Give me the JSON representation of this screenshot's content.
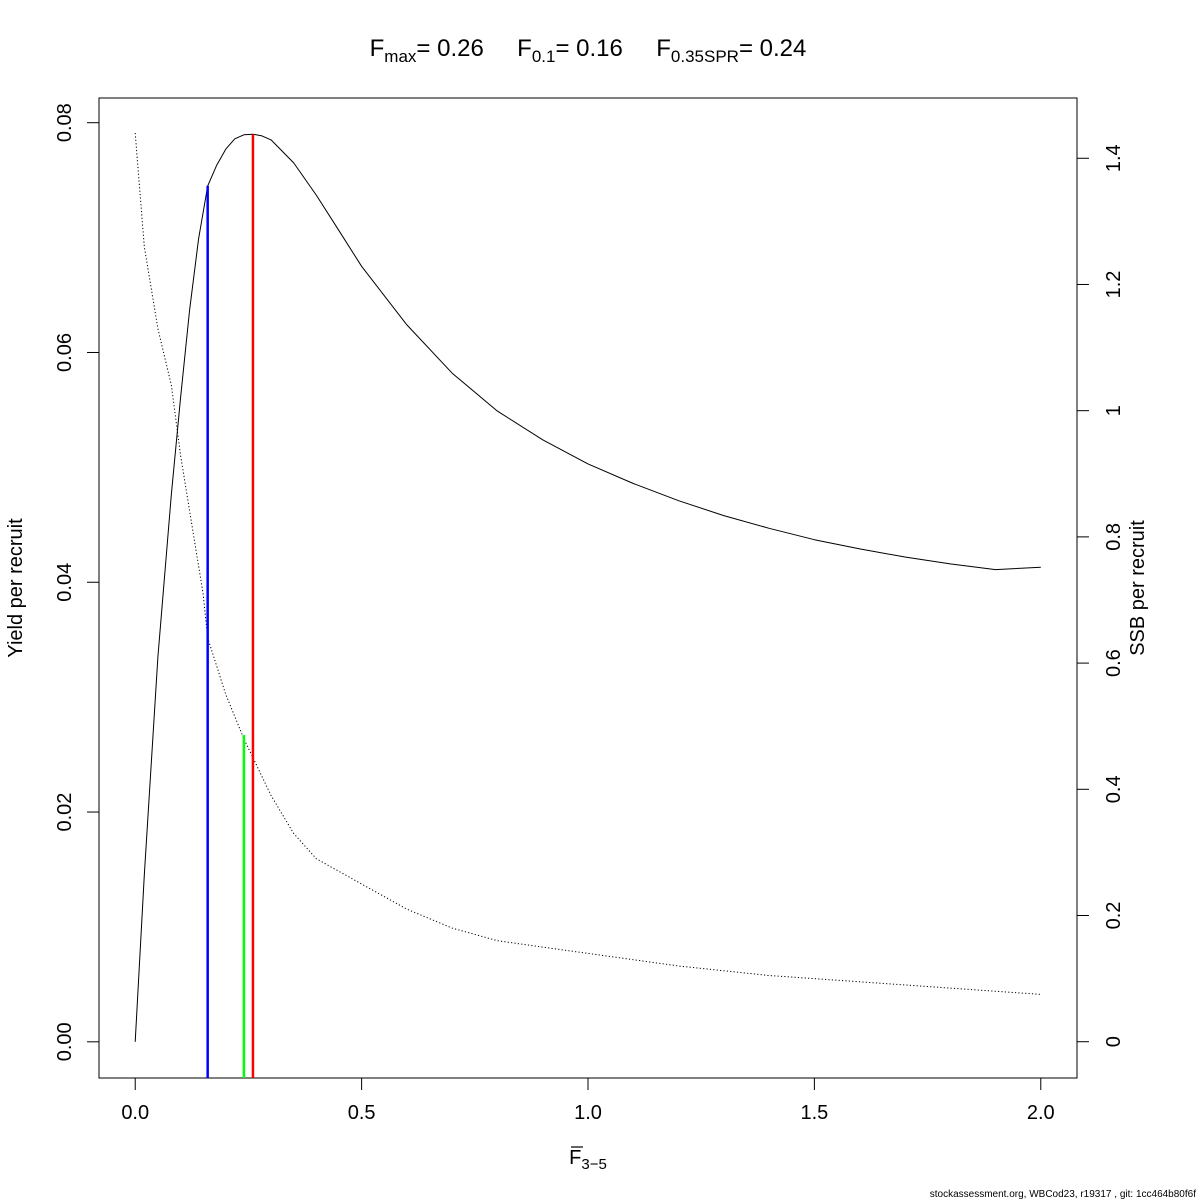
{
  "chart_data": {
    "type": "line",
    "title_parts": [
      {
        "main": "F",
        "sub": "max",
        "eq": "= 0.26"
      },
      {
        "main": "F",
        "sub": "0.1",
        "eq": "= 0.16"
      },
      {
        "main": "F",
        "sub": "0.35SPR",
        "eq": "= 0.24"
      }
    ],
    "xlabel": {
      "main": "F",
      "sub": "3−5",
      "bar": true
    },
    "ylabel_left": "Yield per recruit",
    "ylabel_right": "SSB per recruit",
    "xlim": [
      -0.08,
      2.08
    ],
    "ylim_left": [
      -0.00315,
      0.08215
    ],
    "ylim_right": [
      -0.0575,
      1.4955
    ],
    "x_ticks": [
      0,
      0.5,
      1,
      1.5,
      2
    ],
    "x_tick_labels": [
      "0.0",
      "0.5",
      "1.0",
      "1.5",
      "2.0"
    ],
    "y_left_ticks": [
      0,
      0.02,
      0.04,
      0.06,
      0.08
    ],
    "y_left_tick_labels": [
      "0.00",
      "0.02",
      "0.04",
      "0.06",
      "0.08"
    ],
    "y_right_ticks": [
      0,
      0.2,
      0.4,
      0.6,
      0.8,
      1,
      1.2,
      1.4
    ],
    "y_right_tick_labels": [
      "0",
      "0.2",
      "0.4",
      "0.6",
      "0.8",
      "1",
      "1.2",
      "1.4"
    ],
    "series": [
      {
        "axis": "left",
        "style": "solid",
        "color": "#000000",
        "x": [
          0,
          0.02,
          0.05,
          0.08,
          0.1,
          0.12,
          0.14,
          0.16,
          0.18,
          0.2,
          0.22,
          0.24,
          0.26,
          0.28,
          0.3,
          0.35,
          0.4,
          0.45,
          0.5,
          0.6,
          0.7,
          0.8,
          0.9,
          1.0,
          1.1,
          1.2,
          1.3,
          1.4,
          1.5,
          1.6,
          1.7,
          1.8,
          1.9,
          2.0
        ],
        "y": [
          0,
          0.0145,
          0.0335,
          0.0477,
          0.056,
          0.0637,
          0.0699,
          0.0745,
          0.0763,
          0.0777,
          0.0786,
          0.07895,
          0.079,
          0.07885,
          0.0785,
          0.0765,
          0.0737,
          0.0706,
          0.0675,
          0.0624,
          0.0582,
          0.0549,
          0.0524,
          0.0503,
          0.0486,
          0.0471,
          0.0458,
          0.0447,
          0.0437,
          0.0429,
          0.0422,
          0.0416,
          0.0411,
          0.0413
        ]
      },
      {
        "axis": "right",
        "style": "dotted",
        "color": "#000000",
        "x": [
          0,
          0.02,
          0.05,
          0.08,
          0.1,
          0.15,
          0.16,
          0.2,
          0.24,
          0.3,
          0.35,
          0.4,
          0.5,
          0.6,
          0.7,
          0.8,
          0.9,
          1.0,
          1.2,
          1.4,
          1.6,
          1.8,
          2.0
        ],
        "y": [
          1.44,
          1.26,
          1.13,
          1.04,
          0.93,
          0.71,
          0.64,
          0.55,
          0.48,
          0.39,
          0.33,
          0.29,
          0.25,
          0.21,
          0.18,
          0.16,
          0.15,
          0.14,
          0.12,
          0.105,
          0.095,
          0.085,
          0.075
        ]
      }
    ],
    "reference_lines": [
      {
        "x": 0.16,
        "y_left": 0.0745,
        "color": "#0000ff"
      },
      {
        "x": 0.24,
        "y_left": 0.0267,
        "color": "#00ff00"
      },
      {
        "x": 0.26,
        "y_left": 0.079,
        "color": "#ff0000"
      }
    ]
  },
  "footer": "stockassessment.org, WBCod23, r19317 , git: 1cc464b80f6f"
}
